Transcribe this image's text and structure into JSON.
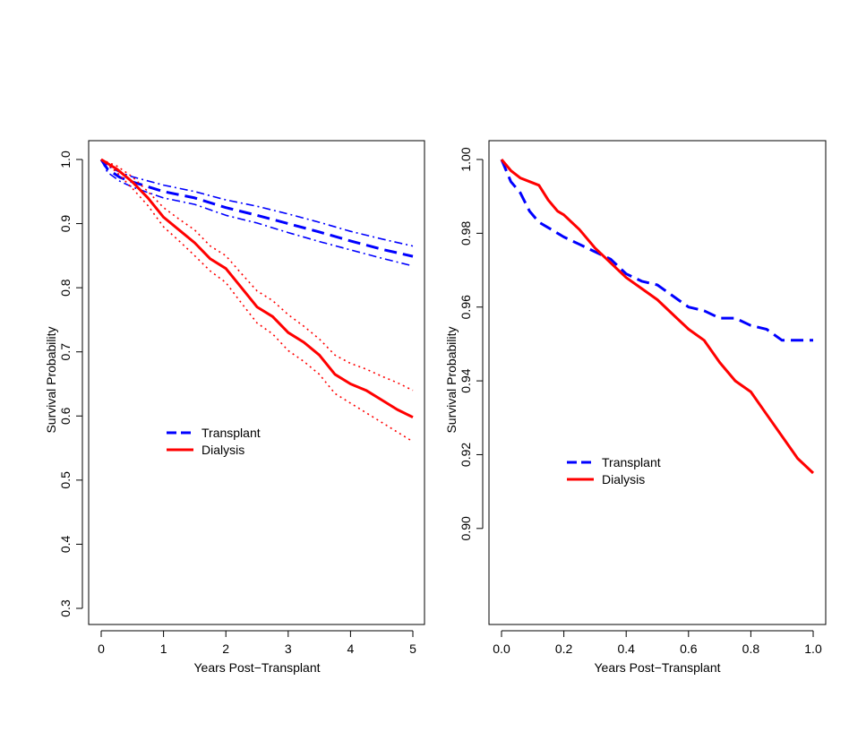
{
  "chart_data": [
    {
      "type": "line",
      "xlabel": "Years Post−Transplant",
      "ylabel": "Survival Probability",
      "xlim": [
        0,
        5
      ],
      "ylim": [
        0.3,
        1.0
      ],
      "x_ticks": [
        "0",
        "1",
        "2",
        "3",
        "4",
        "5"
      ],
      "y_ticks": [
        "0.3",
        "0.4",
        "0.5",
        "0.6",
        "0.7",
        "0.8",
        "0.9",
        "1.0"
      ],
      "legend": [
        {
          "label": "Transplant",
          "color": "#0000ff",
          "dash": "dashed"
        },
        {
          "label": "Dialysis",
          "color": "#ff0000",
          "dash": "solid"
        }
      ],
      "series": [
        {
          "group": "Transplant",
          "kind": "estimate",
          "color": "#0000ff",
          "style": "dashed",
          "x": [
            0,
            0.1,
            0.3,
            0.5,
            1,
            1.5,
            2,
            2.5,
            3,
            3.5,
            4,
            4.5,
            5
          ],
          "y": [
            1.0,
            0.985,
            0.972,
            0.965,
            0.95,
            0.94,
            0.925,
            0.913,
            0.9,
            0.887,
            0.873,
            0.86,
            0.849
          ]
        },
        {
          "group": "Transplant",
          "kind": "upper",
          "color": "#0000ff",
          "style": "dotdash",
          "x": [
            0,
            0.1,
            0.3,
            0.5,
            1,
            1.5,
            2,
            2.5,
            3,
            3.5,
            4,
            4.5,
            5
          ],
          "y": [
            1.0,
            0.99,
            0.98,
            0.973,
            0.96,
            0.95,
            0.937,
            0.927,
            0.915,
            0.902,
            0.888,
            0.876,
            0.865
          ]
        },
        {
          "group": "Transplant",
          "kind": "lower",
          "color": "#0000ff",
          "style": "dotdash",
          "x": [
            0,
            0.1,
            0.3,
            0.5,
            1,
            1.5,
            2,
            2.5,
            3,
            3.5,
            4,
            4.5,
            5
          ],
          "y": [
            1.0,
            0.98,
            0.966,
            0.957,
            0.94,
            0.93,
            0.913,
            0.901,
            0.886,
            0.872,
            0.859,
            0.846,
            0.834
          ]
        },
        {
          "group": "Dialysis",
          "kind": "estimate",
          "color": "#ff0000",
          "style": "solid",
          "x": [
            0,
            0.25,
            0.5,
            0.75,
            1,
            1.25,
            1.5,
            1.75,
            2,
            2.25,
            2.5,
            2.75,
            3,
            3.25,
            3.5,
            3.75,
            4,
            4.25,
            4.5,
            4.75,
            5
          ],
          "y": [
            1.0,
            0.985,
            0.965,
            0.94,
            0.91,
            0.89,
            0.87,
            0.845,
            0.83,
            0.8,
            0.77,
            0.755,
            0.73,
            0.715,
            0.695,
            0.665,
            0.65,
            0.64,
            0.625,
            0.61,
            0.598
          ]
        },
        {
          "group": "Dialysis",
          "kind": "upper",
          "color": "#ff0000",
          "style": "dotted",
          "x": [
            0,
            0.25,
            0.5,
            0.75,
            1,
            1.25,
            1.5,
            1.75,
            2,
            2.25,
            2.5,
            2.75,
            3,
            3.25,
            3.5,
            3.75,
            4,
            4.25,
            4.5,
            4.75,
            5
          ],
          "y": [
            1.0,
            0.99,
            0.973,
            0.95,
            0.925,
            0.907,
            0.89,
            0.865,
            0.85,
            0.822,
            0.795,
            0.78,
            0.758,
            0.74,
            0.72,
            0.695,
            0.682,
            0.673,
            0.662,
            0.652,
            0.64
          ]
        },
        {
          "group": "Dialysis",
          "kind": "lower",
          "color": "#ff0000",
          "style": "dotted",
          "x": [
            0,
            0.25,
            0.5,
            0.75,
            1,
            1.25,
            1.5,
            1.75,
            2,
            2.25,
            2.5,
            2.75,
            3,
            3.25,
            3.5,
            3.75,
            4,
            4.25,
            4.5,
            4.75,
            5
          ],
          "y": [
            1.0,
            0.98,
            0.955,
            0.928,
            0.895,
            0.873,
            0.85,
            0.826,
            0.808,
            0.776,
            0.745,
            0.728,
            0.702,
            0.685,
            0.665,
            0.635,
            0.62,
            0.605,
            0.59,
            0.575,
            0.56
          ]
        }
      ]
    },
    {
      "type": "line",
      "xlabel": "Years Post−Transplant",
      "ylabel": "Survival Probability",
      "xlim": [
        0,
        1
      ],
      "ylim": [
        0.89,
        1.0
      ],
      "x_ticks": [
        "0.0",
        "0.2",
        "0.4",
        "0.6",
        "0.8",
        "1.0"
      ],
      "y_ticks": [
        "0.90",
        "0.92",
        "0.94",
        "0.96",
        "0.98",
        "1.00"
      ],
      "legend": [
        {
          "label": "Transplant",
          "color": "#0000ff",
          "dash": "dashed"
        },
        {
          "label": "Dialysis",
          "color": "#ff0000",
          "dash": "solid"
        }
      ],
      "series": [
        {
          "group": "Transplant",
          "kind": "estimate",
          "color": "#0000ff",
          "style": "dashed",
          "x": [
            0,
            0.03,
            0.06,
            0.09,
            0.12,
            0.16,
            0.2,
            0.25,
            0.3,
            0.35,
            0.4,
            0.45,
            0.5,
            0.55,
            0.6,
            0.65,
            0.7,
            0.75,
            0.8,
            0.85,
            0.9,
            0.95,
            1.0
          ],
          "y": [
            1.0,
            0.994,
            0.991,
            0.986,
            0.983,
            0.981,
            0.979,
            0.977,
            0.975,
            0.973,
            0.969,
            0.967,
            0.966,
            0.963,
            0.96,
            0.959,
            0.957,
            0.957,
            0.955,
            0.954,
            0.951,
            0.951,
            0.951
          ]
        },
        {
          "group": "Dialysis",
          "kind": "estimate",
          "color": "#ff0000",
          "style": "solid",
          "x": [
            0,
            0.03,
            0.06,
            0.09,
            0.12,
            0.15,
            0.18,
            0.2,
            0.25,
            0.3,
            0.35,
            0.4,
            0.45,
            0.5,
            0.55,
            0.6,
            0.65,
            0.7,
            0.75,
            0.8,
            0.85,
            0.9,
            0.95,
            1.0
          ],
          "y": [
            1.0,
            0.997,
            0.995,
            0.994,
            0.993,
            0.989,
            0.986,
            0.985,
            0.981,
            0.976,
            0.972,
            0.968,
            0.965,
            0.962,
            0.958,
            0.954,
            0.951,
            0.945,
            0.94,
            0.937,
            0.931,
            0.925,
            0.919,
            0.915
          ]
        }
      ]
    }
  ]
}
